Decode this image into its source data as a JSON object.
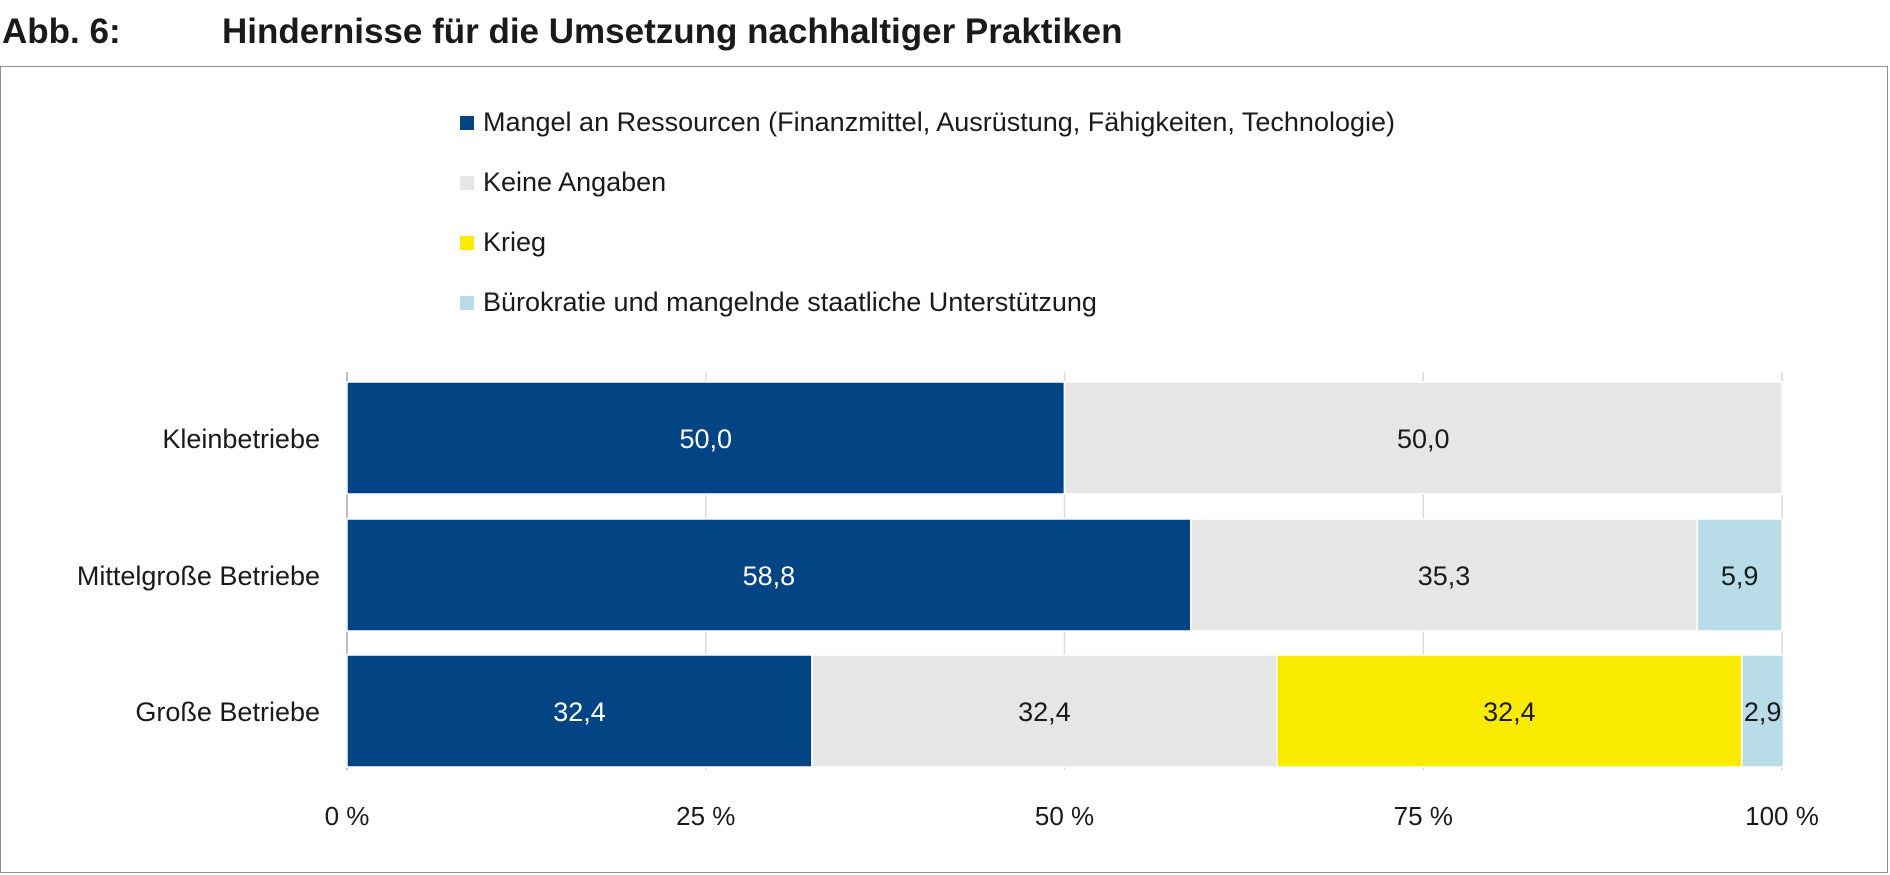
{
  "figure": {
    "number": "Abb. 6:",
    "title": "Hindernisse für die Umsetzung nachhaltiger Praktiken"
  },
  "chart_data": {
    "type": "bar",
    "orientation": "horizontal",
    "stacked": true,
    "title": "Hindernisse für die Umsetzung nachhaltiger Praktiken",
    "categories": [
      "Kleinbetriebe",
      "Mittelgroße Betriebe",
      "Große Betriebe"
    ],
    "series": [
      {
        "name": "Mangel an Ressourcen (Finanzmittel, Ausrüstung, Fähigkeiten, Technologie)",
        "color": "#034584",
        "label_color": "#ffffff",
        "values": [
          50.0,
          58.8,
          32.4
        ],
        "labels": [
          "50,0",
          "58,8",
          "32,4"
        ]
      },
      {
        "name": "Keine Angaben",
        "color": "#e6e6e6",
        "label_color": "#1a1a1a",
        "values": [
          50.0,
          35.3,
          32.4
        ],
        "labels": [
          "50,0",
          "35,3",
          "32,4"
        ]
      },
      {
        "name": "Krieg",
        "color": "#faeb00",
        "label_color": "#1a1a1a",
        "values": [
          0,
          0,
          32.4
        ],
        "labels": [
          "",
          "",
          "32,4"
        ]
      },
      {
        "name": "Bürokratie und mangelnde staatliche Unterstützung",
        "color": "#b8dde8",
        "label_color": "#1a1a1a",
        "values": [
          0,
          5.9,
          2.9
        ],
        "labels": [
          "",
          "5,9",
          "2,9"
        ]
      }
    ],
    "xlim": [
      0,
      100
    ],
    "xticks": [
      0,
      25,
      50,
      75,
      100
    ],
    "xtick_labels": [
      "0 %",
      "25 %",
      "50 %",
      "75 %",
      "100 %"
    ],
    "xlabel": "",
    "ylabel": "",
    "grid": true,
    "legend_position": "top"
  }
}
